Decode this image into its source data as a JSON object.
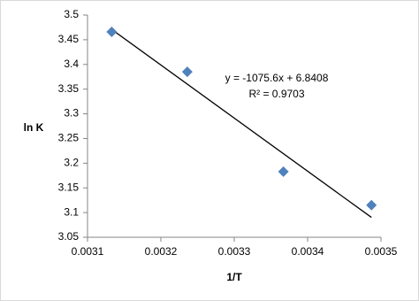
{
  "chart_data": {
    "type": "scatter",
    "xlabel": "1/T",
    "ylabel": "ln K",
    "x": [
      0.003133,
      0.003236,
      0.003367,
      0.003487
    ],
    "values": [
      3.466,
      3.385,
      3.183,
      3.115
    ],
    "color": "#4f81bd",
    "trendline": {
      "x": [
        0.003133,
        0.003487
      ],
      "values": [
        3.4709,
        3.0902
      ],
      "color": "#000000"
    },
    "annotations": [
      "y = -1075.6x + 6.8408",
      "R² = 0.9703"
    ],
    "xlim": [
      0.0031,
      0.0035
    ],
    "xticks": [
      0.0031,
      0.0032,
      0.0033,
      0.0034,
      0.0035
    ],
    "ylim": [
      3.05,
      3.5
    ],
    "yticks": [
      3.05,
      3.1,
      3.15,
      3.2,
      3.25,
      3.3,
      3.35,
      3.4,
      3.45,
      3.5
    ],
    "grid": false
  }
}
